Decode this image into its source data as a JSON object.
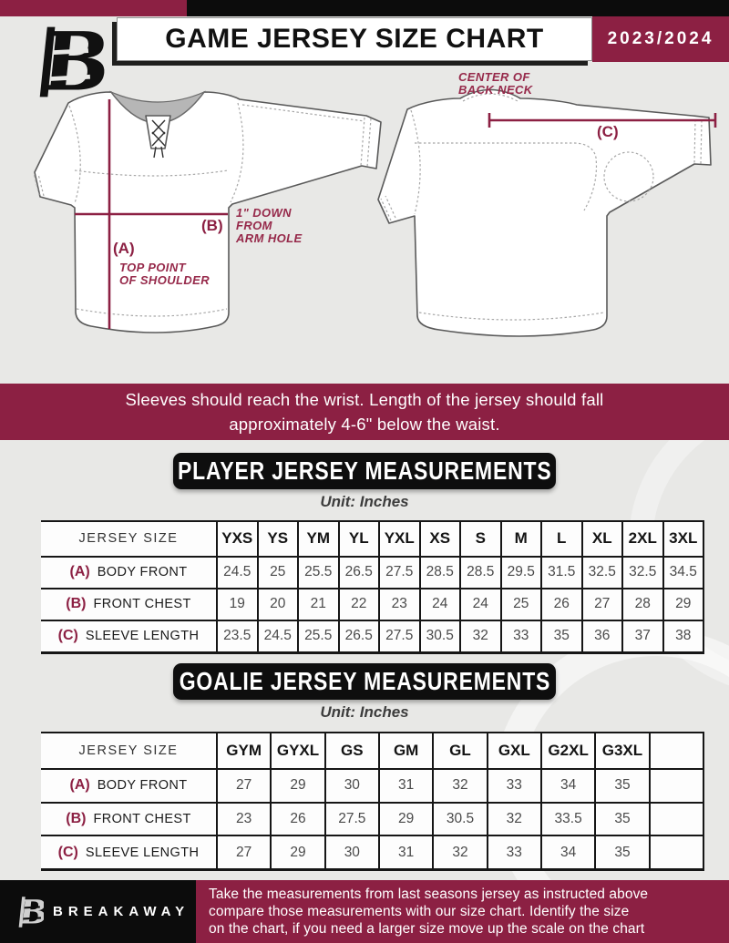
{
  "header": {
    "title": "GAME JERSEY SIZE CHART",
    "season": "2023/2024"
  },
  "colors": {
    "maroon": "#8c2043",
    "black": "#0c0c0c",
    "background": "#e8e8e6",
    "white": "#ffffff",
    "annotation_maroon": "#96294a"
  },
  "diagram": {
    "front": {
      "label_a": "(A)",
      "label_b": "(B)",
      "note_a_lines": [
        "TOP POINT",
        "OF SHOULDER"
      ],
      "note_b_lines": [
        "1\" DOWN",
        "FROM",
        "ARM HOLE"
      ]
    },
    "back": {
      "label_c": "(C)",
      "note_c_lines": [
        "CENTER OF",
        "BACK NECK"
      ]
    }
  },
  "notice": {
    "lines": [
      "Sleeves should reach the wrist. Length of the jersey should fall",
      "approximately 4-6\" below the waist."
    ]
  },
  "player_table": {
    "section_title": "PLAYER JERSEY MEASUREMENTS",
    "unit": "Unit: Inches",
    "label_header": "JERSEY SIZE",
    "columns": [
      "YXS",
      "YS",
      "YM",
      "YL",
      "YXL",
      "XS",
      "S",
      "M",
      "L",
      "XL",
      "2XL",
      "3XL"
    ],
    "rows": [
      {
        "key": "(A)",
        "label": "BODY FRONT",
        "values": [
          "24.5",
          "25",
          "25.5",
          "26.5",
          "27.5",
          "28.5",
          "28.5",
          "29.5",
          "31.5",
          "32.5",
          "32.5",
          "34.5"
        ]
      },
      {
        "key": "(B)",
        "label": "FRONT CHEST",
        "values": [
          "19",
          "20",
          "21",
          "22",
          "23",
          "24",
          "24",
          "25",
          "26",
          "27",
          "28",
          "29"
        ]
      },
      {
        "key": "(C)",
        "label": "SLEEVE LENGTH",
        "values": [
          "23.5",
          "24.5",
          "25.5",
          "26.5",
          "27.5",
          "30.5",
          "32",
          "33",
          "35",
          "36",
          "37",
          "38"
        ]
      }
    ]
  },
  "goalie_table": {
    "section_title": "GOALIE JERSEY MEASUREMENTS",
    "unit": "Unit: Inches",
    "label_header": "JERSEY SIZE",
    "columns": [
      "GYM",
      "GYXL",
      "GS",
      "GM",
      "GL",
      "GXL",
      "G2XL",
      "G3XL",
      ""
    ],
    "rows": [
      {
        "key": "(A)",
        "label": "BODY FRONT",
        "values": [
          "27",
          "29",
          "30",
          "31",
          "32",
          "33",
          "34",
          "35",
          ""
        ]
      },
      {
        "key": "(B)",
        "label": "FRONT CHEST",
        "values": [
          "23",
          "26",
          "27.5",
          "29",
          "30.5",
          "32",
          "33.5",
          "35",
          ""
        ]
      },
      {
        "key": "(C)",
        "label": "SLEEVE LENGTH",
        "values": [
          "27",
          "29",
          "30",
          "31",
          "32",
          "33",
          "34",
          "35",
          ""
        ]
      }
    ]
  },
  "footer": {
    "brand": "BREAKAWAY",
    "lines": [
      "Take the measurements from last seasons jersey as instructed above",
      "compare those measurements  with our size chart. Identify the size",
      "on the chart, if you need a larger size move up the scale on the chart"
    ]
  }
}
